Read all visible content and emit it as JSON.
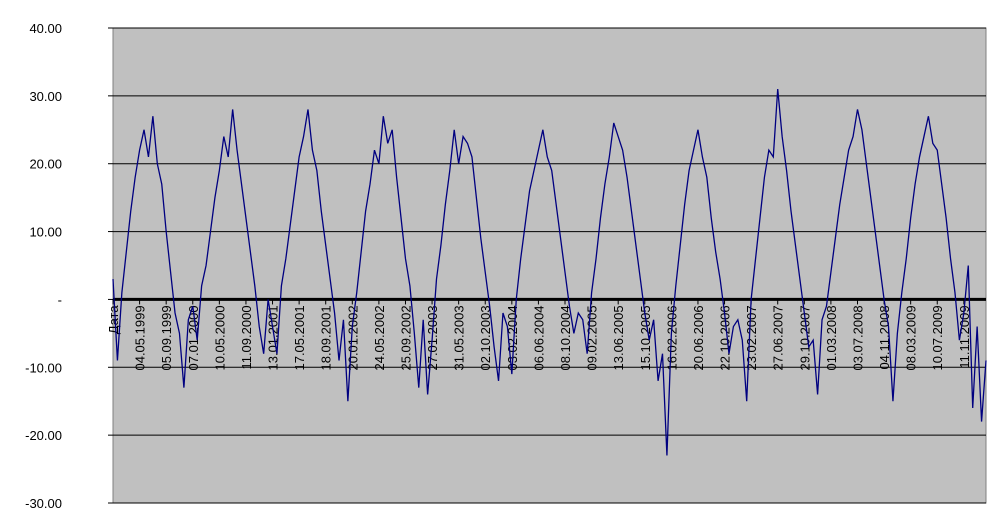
{
  "chart_data": {
    "type": "line",
    "categories": [
      "Дата",
      null,
      null,
      null,
      null,
      null,
      "04.05.1999",
      null,
      null,
      null,
      null,
      null,
      "05.09.1999",
      null,
      null,
      null,
      null,
      null,
      "07.01.2000",
      null,
      null,
      null,
      null,
      null,
      "10.05.2000",
      null,
      null,
      null,
      null,
      null,
      "11.09.2000",
      null,
      null,
      null,
      null,
      null,
      "13.01.2001",
      null,
      null,
      null,
      null,
      null,
      "17.05.2001",
      null,
      null,
      null,
      null,
      null,
      "18.09.2001",
      null,
      null,
      null,
      null,
      null,
      "20.01.2002",
      null,
      null,
      null,
      null,
      null,
      "24.05.2002",
      null,
      null,
      null,
      null,
      null,
      "25.09.2002",
      null,
      null,
      null,
      null,
      null,
      "27.01.2003",
      null,
      null,
      null,
      null,
      null,
      "31.05.2003",
      null,
      null,
      null,
      null,
      null,
      "02.10.2003",
      null,
      null,
      null,
      null,
      null,
      "03.02.2004",
      null,
      null,
      null,
      null,
      null,
      "06.06.2004",
      null,
      null,
      null,
      null,
      null,
      "08.10.2004",
      null,
      null,
      null,
      null,
      null,
      "09.02.2005",
      null,
      null,
      null,
      null,
      null,
      "13.06.2005",
      null,
      null,
      null,
      null,
      null,
      "15.10.2005",
      null,
      null,
      null,
      null,
      null,
      "16.02.2006",
      null,
      null,
      null,
      null,
      null,
      "20.06.2006",
      null,
      null,
      null,
      null,
      null,
      "22.10.2006",
      null,
      null,
      null,
      null,
      null,
      "23.02.2007",
      null,
      null,
      null,
      null,
      null,
      "27.06.2007",
      null,
      null,
      null,
      null,
      null,
      "29.10.2007",
      null,
      null,
      null,
      null,
      null,
      "01.03.2008",
      null,
      null,
      null,
      null,
      null,
      "03.07.2008",
      null,
      null,
      null,
      null,
      null,
      "04.11.2008",
      null,
      null,
      null,
      null,
      null,
      "08.03.2009",
      null,
      null,
      null,
      null,
      null,
      "10.07.2009",
      null,
      null,
      null,
      null,
      null,
      "11.11.2009",
      null,
      null,
      null,
      null,
      null
    ],
    "series": [
      {
        "color": "#000080",
        "values": [
          3,
          -9,
          1,
          7,
          13,
          18,
          22,
          25,
          21,
          27,
          20,
          17,
          10,
          4,
          -2,
          -5,
          -13,
          -3,
          -1,
          -6,
          2,
          5,
          10,
          15,
          19,
          24,
          21,
          28,
          22,
          17,
          12,
          7,
          2,
          -4,
          -8,
          0,
          -4,
          -8,
          2,
          6,
          11,
          16,
          21,
          24,
          28,
          22,
          19,
          13,
          8,
          3,
          -2,
          -9,
          -3,
          -15,
          -4,
          1,
          7,
          13,
          17,
          22,
          20,
          27,
          23,
          25,
          18,
          12,
          6,
          2,
          -5,
          -13,
          -3,
          -14,
          -6,
          3,
          8,
          14,
          19,
          25,
          20,
          24,
          23,
          21,
          15,
          9,
          4,
          -1,
          -7,
          -12,
          -2,
          -4,
          -11,
          0,
          6,
          11,
          16,
          19,
          22,
          25,
          21,
          19,
          14,
          9,
          4,
          -1,
          -5,
          -2,
          -3,
          -8,
          1,
          6,
          12,
          17,
          21,
          26,
          24,
          22,
          18,
          13,
          8,
          3,
          -2,
          -6,
          -3,
          -12,
          -8,
          -23,
          -5,
          2,
          8,
          14,
          19,
          22,
          25,
          21,
          18,
          12,
          7,
          3,
          -2,
          -8,
          -4,
          -3,
          -6,
          -15,
          0,
          6,
          12,
          18,
          22,
          21,
          31,
          24,
          19,
          13,
          8,
          3,
          -2,
          -7,
          -6,
          -14,
          -3,
          -1,
          4,
          9,
          14,
          18,
          22,
          24,
          28,
          25,
          20,
          15,
          10,
          5,
          0,
          -4,
          -15,
          -5,
          1,
          6,
          12,
          17,
          21,
          24,
          27,
          23,
          22,
          17,
          12,
          6,
          1,
          -6,
          -2,
          5,
          -16,
          -4,
          -18,
          -9
        ]
      }
    ],
    "ylim": [
      -30,
      40
    ],
    "yticks": [
      {
        "value": -30,
        "label": "-30.00"
      },
      {
        "value": -20,
        "label": "-20.00"
      },
      {
        "value": -10,
        "label": "-10.00"
      },
      {
        "value": 0,
        "label": "-"
      },
      {
        "value": 10,
        "label": "10.00"
      },
      {
        "value": 20,
        "label": "20.00"
      },
      {
        "value": 30,
        "label": "30.00"
      },
      {
        "value": 40,
        "label": "40.00"
      }
    ],
    "grid": true
  }
}
